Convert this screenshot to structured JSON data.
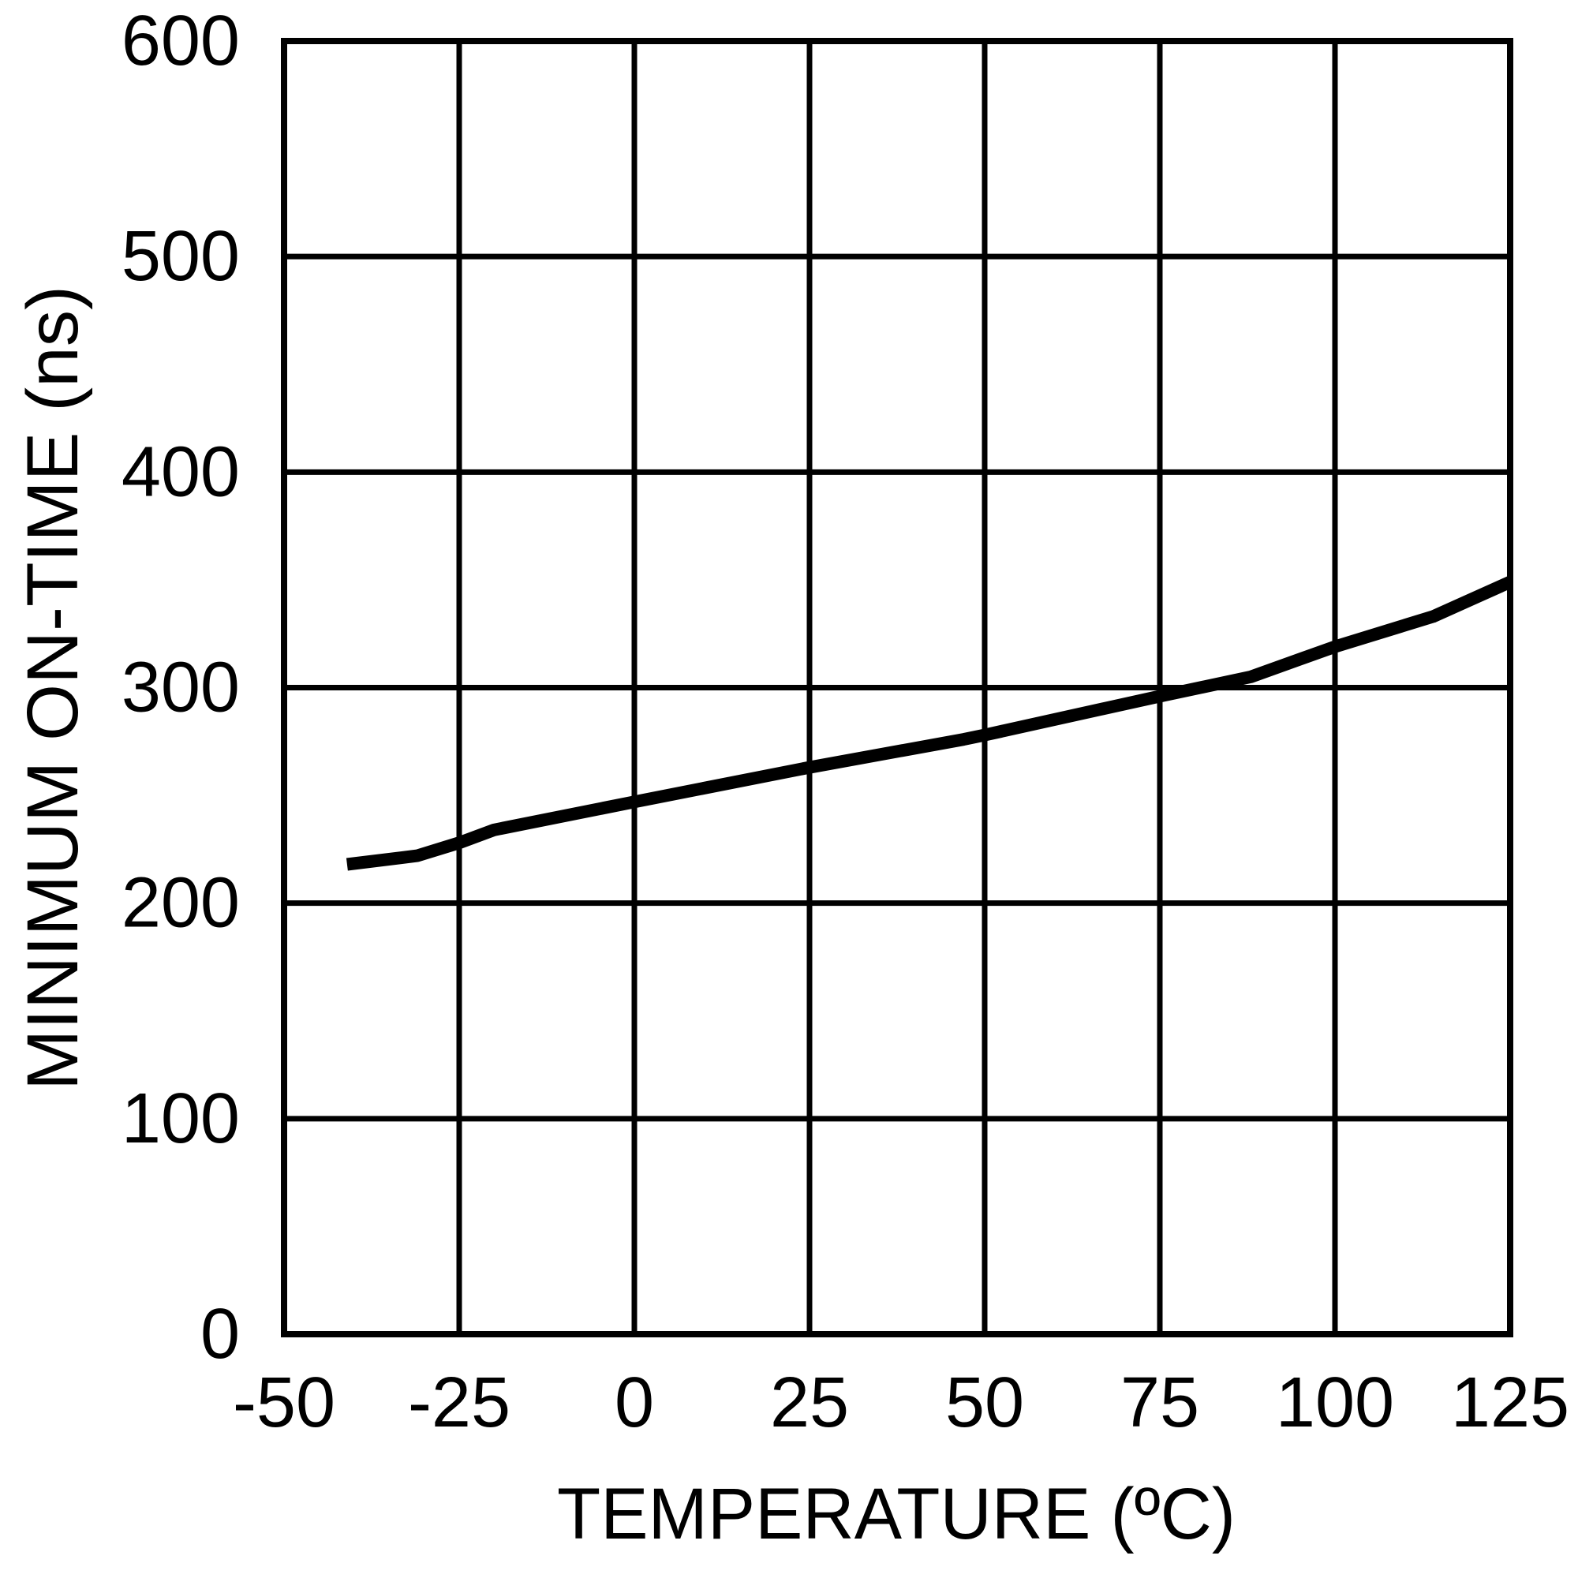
{
  "chart_data": {
    "type": "line",
    "title": "",
    "xlabel": "TEMPERATURE (ºC)",
    "ylabel": "MINIMUM ON-TIME (ns)",
    "xlim": [
      -50,
      125
    ],
    "ylim": [
      0,
      600
    ],
    "x_ticks": [
      "-50",
      "-25",
      "0",
      "25",
      "50",
      "75",
      "100",
      "125"
    ],
    "y_ticks": [
      "0",
      "100",
      "200",
      "300",
      "400",
      "500",
      "600"
    ],
    "grid": true,
    "legend": null,
    "series": [
      {
        "name": "Minimum On-Time",
        "color": "#000000",
        "x": [
          -41,
          -31,
          -25,
          -20,
          0,
          25,
          47,
          50,
          75,
          88,
          100,
          114,
          125
        ],
        "y": [
          218,
          222,
          228,
          234,
          247,
          263,
          276,
          278,
          296,
          305,
          319,
          333,
          349
        ]
      }
    ]
  },
  "style": {
    "line_color": "#000000",
    "grid_color": "#000000",
    "background": "#ffffff"
  }
}
